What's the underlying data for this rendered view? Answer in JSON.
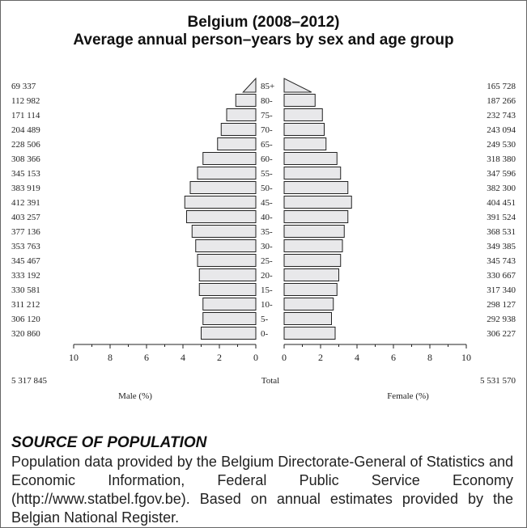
{
  "title_line1": "Belgium (2008–2012)",
  "title_line2": "Average annual person–years by sex and age group",
  "source_heading": "SOURCE OF POPULATION",
  "source_text": "Population data provided by the Belgium Directorate-General of Statistics and Economic Information, Federal Public Service Economy (http://www.statbel.fgov.be). Based on annual estimates provided by the Belgian National Register.",
  "chart_data": {
    "type": "bar",
    "age_groups": [
      "0-",
      "5-",
      "10-",
      "15-",
      "20-",
      "25-",
      "30-",
      "35-",
      "40-",
      "45-",
      "50-",
      "55-",
      "60-",
      "65-",
      "70-",
      "75-",
      "80-",
      "85+"
    ],
    "series": [
      {
        "name": "Male (%)",
        "counts": [
          "320 860",
          "306 120",
          "311 212",
          "330 581",
          "333 192",
          "345 467",
          "353 763",
          "377 136",
          "403 257",
          "412 391",
          "383 919",
          "345 153",
          "308 366",
          "228 506",
          "204 489",
          "171 114",
          "112 982",
          "69 337"
        ],
        "values": [
          3.0,
          2.9,
          2.9,
          3.1,
          3.1,
          3.2,
          3.3,
          3.5,
          3.8,
          3.9,
          3.6,
          3.2,
          2.9,
          2.1,
          1.9,
          1.6,
          1.1,
          0.7
        ]
      },
      {
        "name": "Female (%)",
        "counts": [
          "306 227",
          "292 938",
          "298 127",
          "317 340",
          "330 667",
          "345 743",
          "349 385",
          "368 531",
          "391 524",
          "404 451",
          "382 300",
          "347 596",
          "318 380",
          "249 530",
          "243 094",
          "232 743",
          "187 266",
          "165 728"
        ],
        "values": [
          2.8,
          2.6,
          2.7,
          2.9,
          3.0,
          3.1,
          3.2,
          3.3,
          3.5,
          3.7,
          3.5,
          3.1,
          2.9,
          2.3,
          2.2,
          2.1,
          1.7,
          1.5
        ]
      }
    ],
    "xlim": [
      0,
      10
    ],
    "male_ticks": [
      "10",
      "8",
      "6",
      "4",
      "2",
      "0"
    ],
    "female_ticks": [
      "0",
      "2",
      "4",
      "6",
      "8",
      "10"
    ],
    "male_total": "5 317 845",
    "female_total": "5 531 570",
    "total_label": "Total",
    "xlabel_male": "Male (%)",
    "xlabel_female": "Female (%)",
    "bar_color": "#e8e8ea",
    "bar_stroke": "#222222"
  }
}
